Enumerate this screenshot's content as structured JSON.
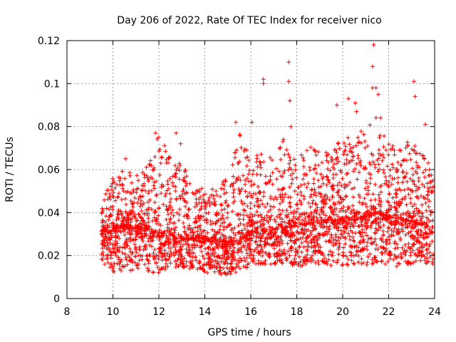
{
  "chart_data": {
    "type": "scatter",
    "title": "Day 206 of 2022, Rate Of TEC Index for receiver nico",
    "xlabel": "GPS time / hours",
    "ylabel": "ROTI / TECUs",
    "xlim": [
      8,
      24
    ],
    "ylim": [
      0,
      0.12
    ],
    "x_ticks": [
      "8",
      "10",
      "12",
      "14",
      "16",
      "18",
      "20",
      "22",
      "24"
    ],
    "y_ticks": [
      "0",
      "0.02",
      "0.04",
      "0.06",
      "0.08",
      "0.1",
      "0.12"
    ],
    "grid": true,
    "marker": "plus",
    "color": "#ff0000",
    "x_start": 9.5,
    "x_end": 23.95,
    "envelope": [
      {
        "x": 9.5,
        "low": 0.015,
        "mid": 0.03,
        "high": 0.05
      },
      {
        "x": 10.0,
        "low": 0.012,
        "mid": 0.032,
        "high": 0.056
      },
      {
        "x": 10.5,
        "low": 0.013,
        "mid": 0.034,
        "high": 0.06
      },
      {
        "x": 11.0,
        "low": 0.013,
        "mid": 0.033,
        "high": 0.058
      },
      {
        "x": 11.5,
        "low": 0.012,
        "mid": 0.032,
        "high": 0.062
      },
      {
        "x": 12.0,
        "low": 0.012,
        "mid": 0.03,
        "high": 0.077
      },
      {
        "x": 12.5,
        "low": 0.014,
        "mid": 0.029,
        "high": 0.066
      },
      {
        "x": 13.0,
        "low": 0.014,
        "mid": 0.028,
        "high": 0.064
      },
      {
        "x": 13.5,
        "low": 0.014,
        "mid": 0.028,
        "high": 0.05
      },
      {
        "x": 14.0,
        "low": 0.012,
        "mid": 0.028,
        "high": 0.052
      },
      {
        "x": 14.5,
        "low": 0.011,
        "mid": 0.027,
        "high": 0.052
      },
      {
        "x": 15.0,
        "low": 0.011,
        "mid": 0.026,
        "high": 0.056
      },
      {
        "x": 15.5,
        "low": 0.012,
        "mid": 0.027,
        "high": 0.08
      },
      {
        "x": 16.0,
        "low": 0.015,
        "mid": 0.031,
        "high": 0.064
      },
      {
        "x": 16.5,
        "low": 0.016,
        "mid": 0.032,
        "high": 0.07
      },
      {
        "x": 17.0,
        "low": 0.016,
        "mid": 0.032,
        "high": 0.066
      },
      {
        "x": 17.5,
        "low": 0.015,
        "mid": 0.033,
        "high": 0.076
      },
      {
        "x": 18.0,
        "low": 0.015,
        "mid": 0.034,
        "high": 0.064
      },
      {
        "x": 18.5,
        "low": 0.015,
        "mid": 0.035,
        "high": 0.072
      },
      {
        "x": 19.0,
        "low": 0.015,
        "mid": 0.036,
        "high": 0.068
      },
      {
        "x": 19.5,
        "low": 0.015,
        "mid": 0.037,
        "high": 0.07
      },
      {
        "x": 20.0,
        "low": 0.015,
        "mid": 0.037,
        "high": 0.074
      },
      {
        "x": 20.5,
        "low": 0.015,
        "mid": 0.037,
        "high": 0.076
      },
      {
        "x": 21.0,
        "low": 0.015,
        "mid": 0.038,
        "high": 0.08
      },
      {
        "x": 21.5,
        "low": 0.016,
        "mid": 0.04,
        "high": 0.085
      },
      {
        "x": 22.0,
        "low": 0.015,
        "mid": 0.038,
        "high": 0.072
      },
      {
        "x": 22.5,
        "low": 0.015,
        "mid": 0.037,
        "high": 0.07
      },
      {
        "x": 23.0,
        "low": 0.016,
        "mid": 0.036,
        "high": 0.075
      },
      {
        "x": 23.5,
        "low": 0.016,
        "mid": 0.034,
        "high": 0.068
      },
      {
        "x": 24.0,
        "low": 0.016,
        "mid": 0.033,
        "high": 0.06
      }
    ],
    "outliers": [
      {
        "x": 10.55,
        "y": 0.065
      },
      {
        "x": 11.85,
        "y": 0.077
      },
      {
        "x": 12.75,
        "y": 0.077
      },
      {
        "x": 12.95,
        "y": 0.072
      },
      {
        "x": 15.35,
        "y": 0.082
      },
      {
        "x": 16.05,
        "y": 0.082
      },
      {
        "x": 16.55,
        "y": 0.1
      },
      {
        "x": 16.55,
        "y": 0.102
      },
      {
        "x": 17.65,
        "y": 0.11
      },
      {
        "x": 17.65,
        "y": 0.101
      },
      {
        "x": 17.7,
        "y": 0.092
      },
      {
        "x": 17.75,
        "y": 0.08
      },
      {
        "x": 19.75,
        "y": 0.09
      },
      {
        "x": 20.25,
        "y": 0.093
      },
      {
        "x": 20.55,
        "y": 0.091
      },
      {
        "x": 20.6,
        "y": 0.087
      },
      {
        "x": 21.35,
        "y": 0.118
      },
      {
        "x": 21.3,
        "y": 0.108
      },
      {
        "x": 21.3,
        "y": 0.098
      },
      {
        "x": 21.45,
        "y": 0.098
      },
      {
        "x": 21.55,
        "y": 0.095
      },
      {
        "x": 21.65,
        "y": 0.084
      },
      {
        "x": 23.1,
        "y": 0.101
      },
      {
        "x": 23.15,
        "y": 0.094
      },
      {
        "x": 23.6,
        "y": 0.081
      }
    ]
  }
}
